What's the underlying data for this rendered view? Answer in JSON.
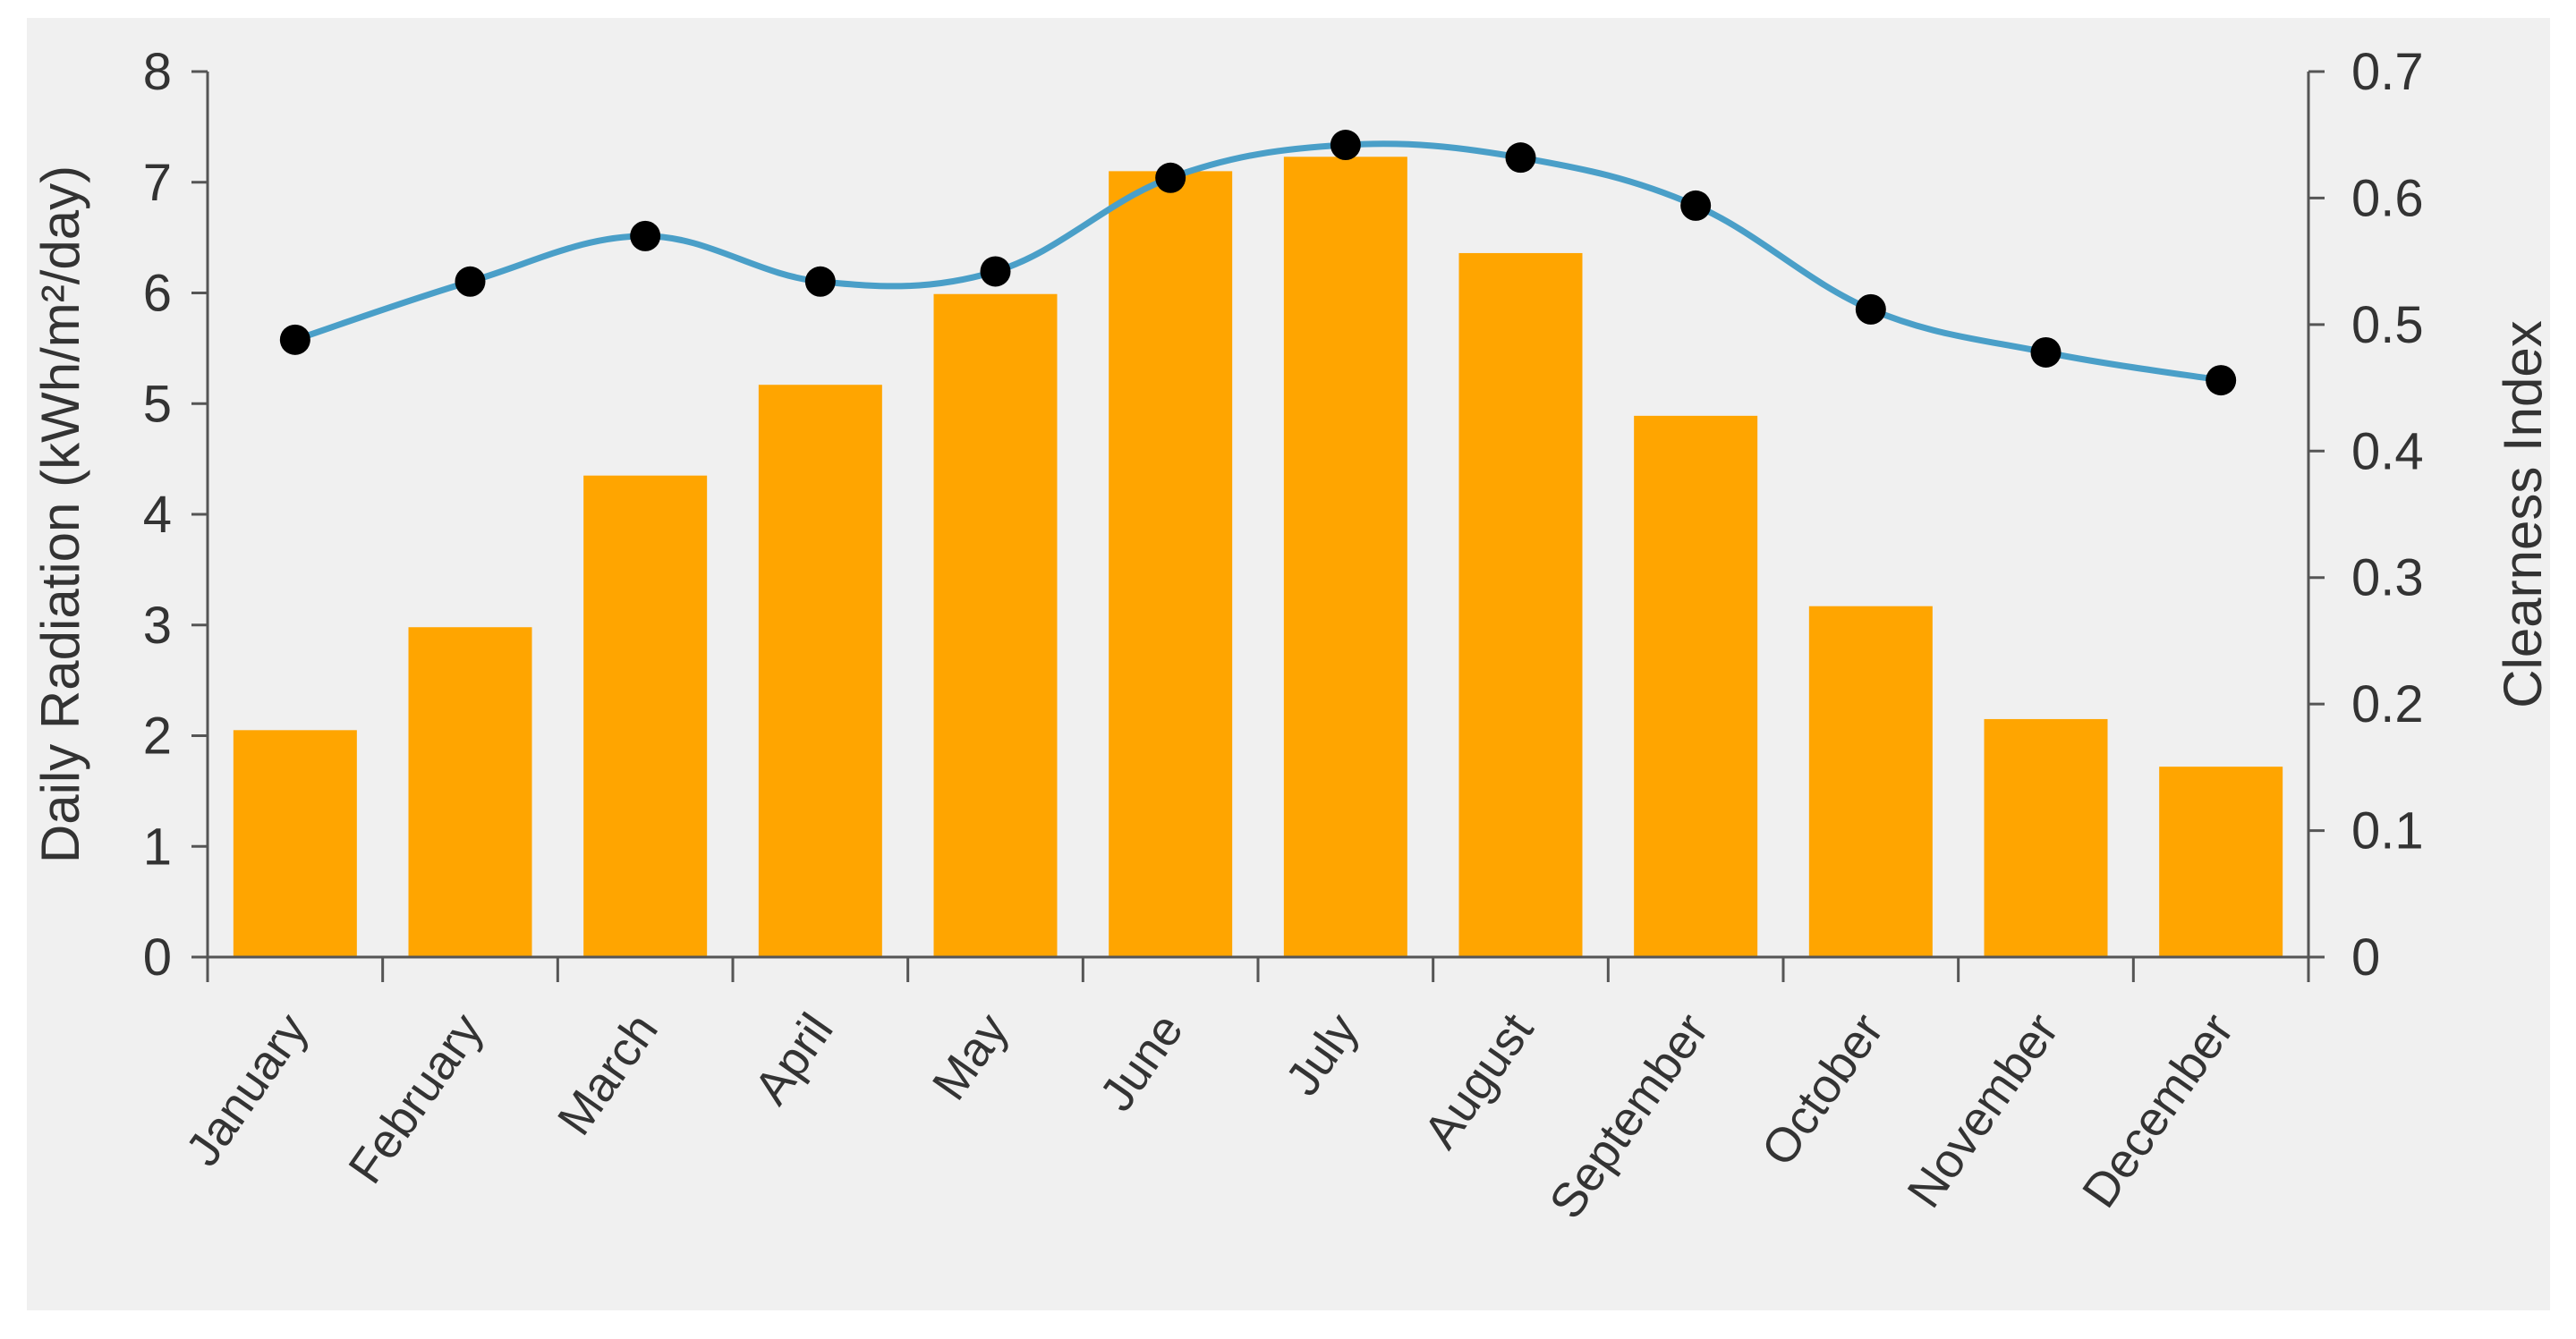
{
  "chart_data": {
    "type": "bar",
    "categories": [
      "January",
      "February",
      "March",
      "April",
      "May",
      "June",
      "July",
      "August",
      "September",
      "October",
      "November",
      "December"
    ],
    "series": [
      {
        "name": "Daily Radiation",
        "type": "bar",
        "axis": "left",
        "values": [
          2.05,
          2.98,
          4.35,
          5.17,
          5.99,
          7.1,
          7.23,
          6.36,
          4.89,
          3.17,
          2.15,
          1.72
        ]
      },
      {
        "name": "Clearness Index",
        "type": "line",
        "axis": "right",
        "values": [
          0.488,
          0.534,
          0.57,
          0.534,
          0.542,
          0.616,
          0.642,
          0.632,
          0.594,
          0.512,
          0.478,
          0.456
        ]
      }
    ],
    "ylabel": "Daily Radiation (kWh/m²/day)",
    "y2label": "Clearness Index",
    "xlabel": "",
    "ylim": [
      0,
      8
    ],
    "y2lim": [
      0,
      0.7
    ],
    "yticks": [
      "0",
      "1",
      "2",
      "3",
      "4",
      "5",
      "6",
      "7",
      "8"
    ],
    "y2ticks": [
      "0",
      "0.1",
      "0.2",
      "0.3",
      "0.4",
      "0.5",
      "0.6",
      "0.7"
    ],
    "colors": {
      "bar": "#FFA500",
      "line": "#4A9FC8",
      "marker": "#000000",
      "plot_bg": "#F0F0F0",
      "axis": "#555555"
    },
    "grid": false,
    "legend": "none"
  }
}
